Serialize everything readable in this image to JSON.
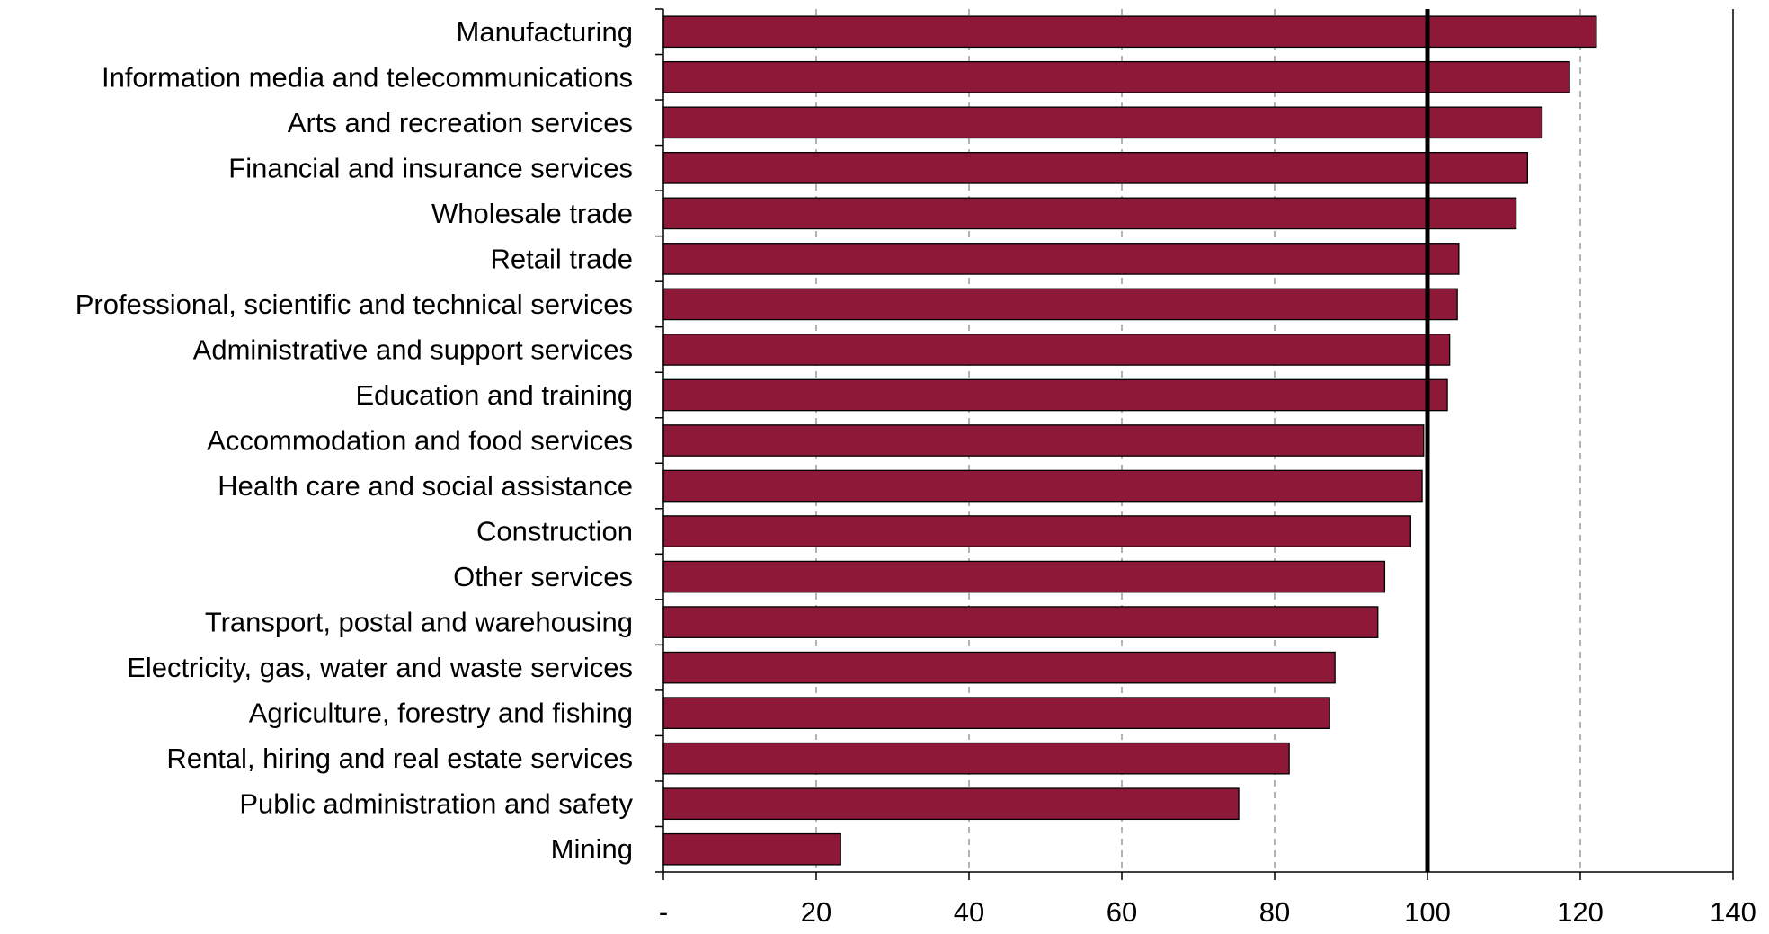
{
  "chart_data": {
    "type": "bar",
    "orientation": "horizontal",
    "title": "",
    "xlabel": "",
    "ylabel": "",
    "xlim": [
      0,
      140
    ],
    "xticks": [
      0,
      20,
      40,
      60,
      80,
      100,
      120,
      140
    ],
    "xtick_labels": [
      "-",
      "20",
      "40",
      "60",
      "80",
      "100",
      "120",
      "140"
    ],
    "reference_line": 100,
    "grid": "vertical dashed",
    "legend": "none",
    "bar_color": "#8e1838",
    "categories": [
      "Manufacturing",
      "Information media and telecommunications",
      "Arts and recreation services",
      "Financial and insurance services",
      "Wholesale trade",
      "Retail trade",
      "Professional, scientific and technical services",
      "Administrative and support services",
      "Education and training",
      "Accommodation and food services",
      "Health care and social assistance",
      "Construction",
      "Other services",
      "Transport, postal and warehousing",
      "Electricity, gas, water and waste services",
      "Agriculture, forestry and fishing",
      "Rental, hiring and real estate services",
      "Public administration and safety",
      "Mining"
    ],
    "values": [
      122.1,
      118.6,
      115.0,
      113.1,
      111.6,
      104.1,
      103.9,
      102.9,
      102.6,
      99.5,
      99.3,
      97.8,
      94.4,
      93.5,
      87.9,
      87.2,
      81.9,
      75.3,
      23.2
    ]
  }
}
